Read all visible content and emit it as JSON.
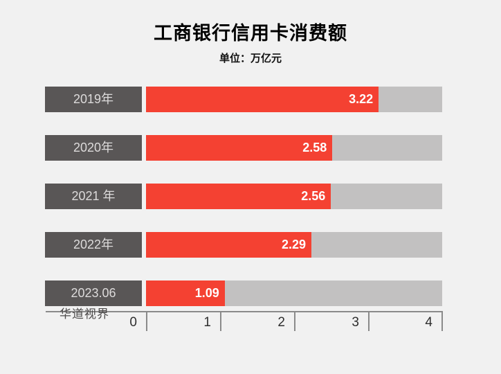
{
  "header": {
    "title": "工商银行信用卡消费额",
    "subtitle": "单位：万亿元"
  },
  "watermark": "华道视界",
  "colors": {
    "background": "#f1f1f1",
    "bar_fill": "#f44132",
    "bar_track": "#c2c1c1",
    "category_box": "#595656",
    "category_text": "#dddbdb",
    "value_text": "#ffffff",
    "axis": "#8a8a8a",
    "axis_label": "#2e2e2e",
    "title_text": "#000000",
    "watermark_text": "#4d4b4b"
  },
  "chart_data": {
    "type": "bar",
    "orientation": "horizontal",
    "title": "工商银行信用卡消费额",
    "subtitle": "单位：万亿元",
    "unit": "万亿元",
    "categories": [
      "2019年",
      "2020年",
      "2021 年",
      "2022年",
      "2023.06"
    ],
    "values": [
      3.22,
      2.58,
      2.56,
      2.29,
      1.09
    ],
    "xlabel": "",
    "ylabel": "",
    "xlim": [
      0,
      4.1
    ],
    "x_ticks": [
      "0",
      "1",
      "2",
      "3",
      "4"
    ],
    "grid": false,
    "legend": false,
    "value_labels": "inside-end"
  }
}
